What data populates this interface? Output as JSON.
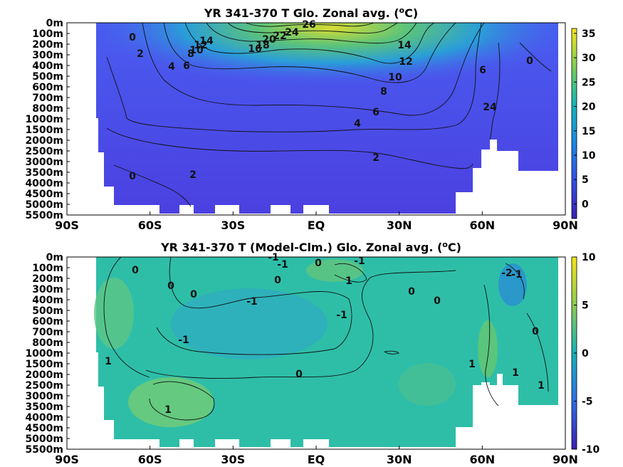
{
  "chart_data": [
    {
      "type": "heatmap",
      "title": "YR 341-370 T Glo. Zonal avg. (°C)",
      "title_main": "YR 341-370 T Glo. Zonal avg. (",
      "title_sup": "o",
      "title_tail": "C)",
      "x_ticks": [
        "90S",
        "60S",
        "30S",
        "EQ",
        "30N",
        "60N",
        "90N"
      ],
      "x_values": [
        -90,
        -60,
        -30,
        0,
        30,
        60,
        90
      ],
      "xlim": [
        -90,
        90
      ],
      "y_ticks": [
        "0m",
        "100m",
        "200m",
        "300m",
        "400m",
        "500m",
        "600m",
        "700m",
        "800m",
        "1000m",
        "1500m",
        "2000m",
        "2500m",
        "3000m",
        "3500m",
        "4000m",
        "4500m",
        "5000m",
        "5500m"
      ],
      "colorbar": {
        "ticks": [
          "35",
          "30",
          "25",
          "20",
          "15",
          "10",
          "5",
          "0"
        ],
        "values": [
          35,
          30,
          25,
          20,
          15,
          10,
          5,
          0
        ],
        "range": [
          -3,
          36
        ]
      },
      "contour_labels": [
        "0",
        "2",
        "4",
        "6",
        "8",
        "10",
        "12",
        "14",
        "16",
        "18",
        "20",
        "22",
        "24",
        "26",
        "4",
        "6",
        "8",
        "10",
        "12",
        "14",
        "6",
        "24",
        "0",
        "2",
        "2",
        "0",
        "4",
        "6"
      ],
      "grid": false
    },
    {
      "type": "heatmap",
      "title": "YR 341-370 T (Model-Clm.) Glo. Zonal avg. (°C)",
      "title_main": "YR 341-370 T (Model-Clm.) Glo. Zonal avg. (",
      "title_sup": "o",
      "title_tail": "C)",
      "x_ticks": [
        "90S",
        "60S",
        "30S",
        "EQ",
        "30N",
        "60N",
        "90N"
      ],
      "x_values": [
        -90,
        -60,
        -30,
        0,
        30,
        60,
        90
      ],
      "xlim": [
        -90,
        90
      ],
      "y_ticks": [
        "0m",
        "100m",
        "200m",
        "300m",
        "400m",
        "500m",
        "600m",
        "700m",
        "800m",
        "1000m",
        "1500m",
        "2000m",
        "2500m",
        "3000m",
        "3500m",
        "4000m",
        "4500m",
        "5000m",
        "5500m"
      ],
      "colorbar": {
        "ticks": [
          "10",
          "5",
          "0",
          "-5",
          "-10"
        ],
        "values": [
          10,
          5,
          0,
          -5,
          -10
        ],
        "range": [
          -10,
          10
        ]
      },
      "contour_labels": [
        "0",
        "0",
        "0",
        "-1",
        "-1",
        "0",
        "-1",
        "1",
        "-1",
        "-1",
        "0",
        "0",
        "-1",
        "0",
        "1",
        "0",
        "1",
        "1",
        "1",
        "1",
        "-2",
        "-1",
        "0"
      ],
      "grid": false
    }
  ]
}
